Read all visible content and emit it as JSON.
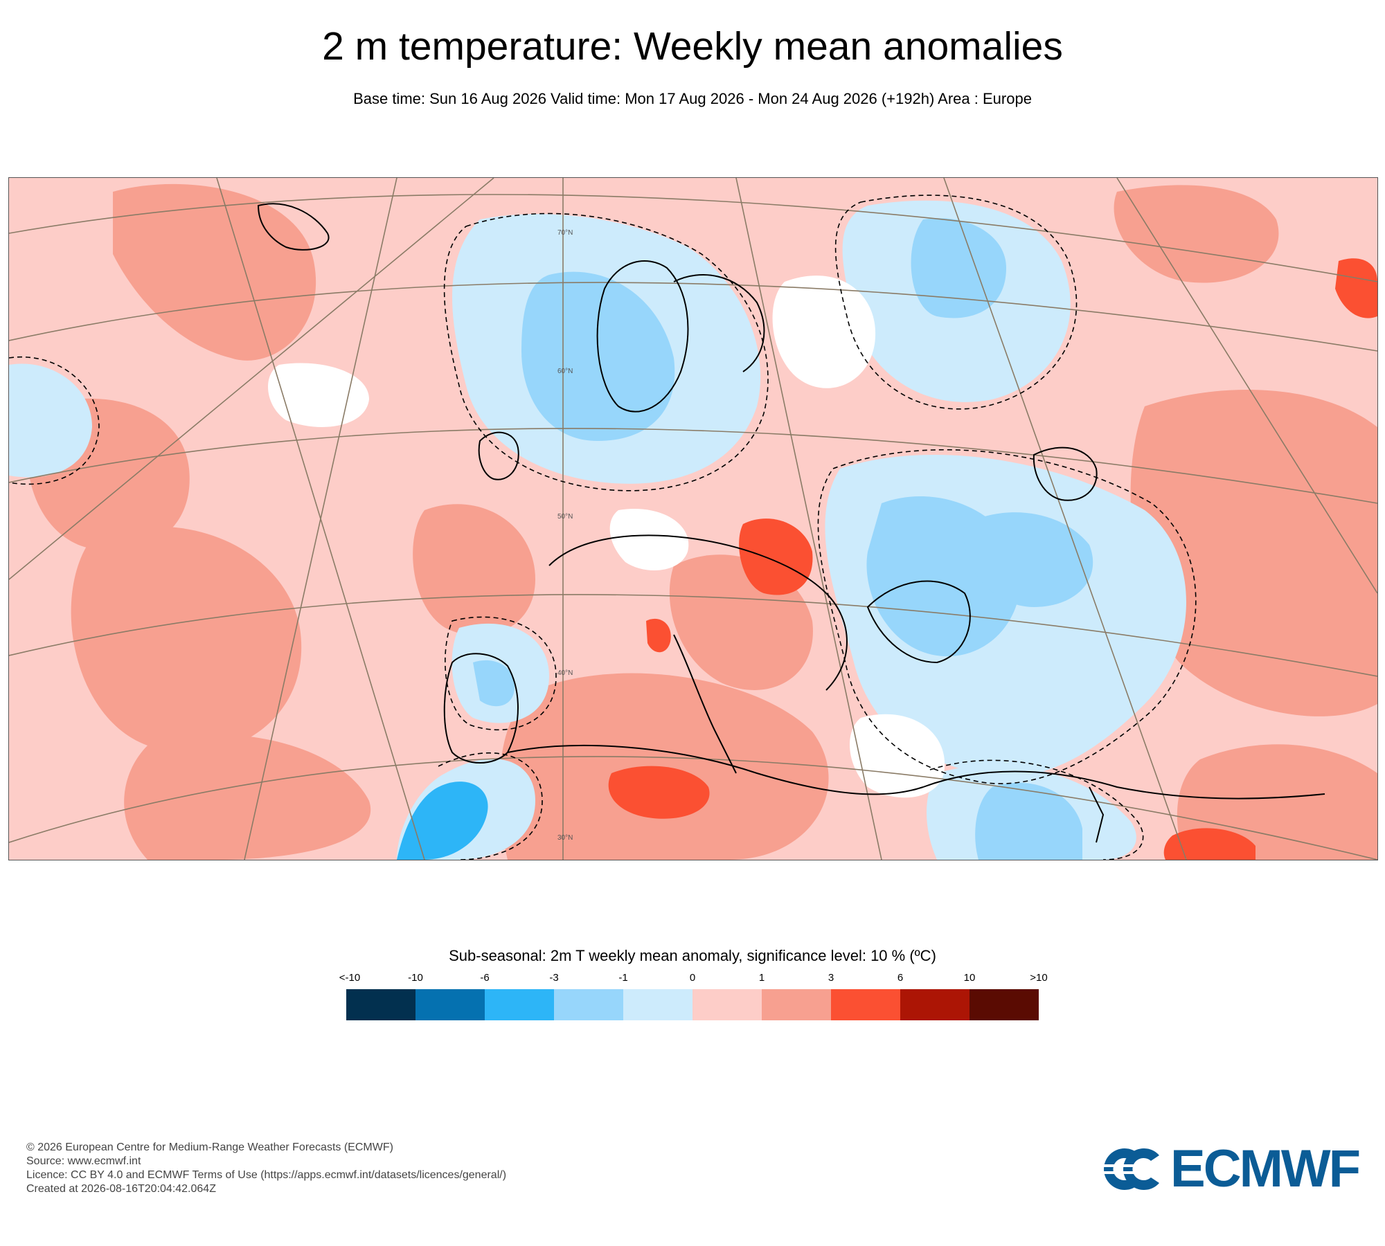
{
  "header": {
    "title": "2 m temperature: Weekly mean anomalies",
    "subtitle": "Base time: Sun 16 Aug 2026 Valid time: Mon 17 Aug 2026 - Mon 24 Aug 2026 (+192h) Area : Europe"
  },
  "map": {
    "latitude_labels": [
      "70°N",
      "60°N",
      "50°N",
      "40°N",
      "30°N"
    ],
    "colors": {
      "land_border": "#000000",
      "graticule": "#8a7b66",
      "significance_contour": "#000000"
    }
  },
  "legend": {
    "title": "Sub-seasonal: 2m T weekly mean anomaly, significance level: 10 % (ºC)",
    "labels": [
      "<-10",
      "-10",
      "-6",
      "-3",
      "-1",
      "0",
      "1",
      "3",
      "6",
      "10",
      ">10"
    ],
    "colors": [
      "#02304f",
      "#0571b0",
      "#2db5f7",
      "#97d6fb",
      "#cdebfc",
      "#fdcdc8",
      "#f7a090",
      "#fb5032",
      "#ac1505",
      "#5a0b02"
    ]
  },
  "footer": {
    "copyright": "© 2026 European Centre for Medium-Range Weather Forecasts (ECMWF)",
    "source": "Source: www.ecmwf.int",
    "licence": "Licence: CC BY 4.0 and ECMWF Terms of Use (https://apps.ecmwf.int/datasets/licences/general/)",
    "created": "Created at 2026-08-16T20:04:42.064Z"
  },
  "logo": {
    "text": "ECMWF",
    "color": "#0b5c96"
  }
}
